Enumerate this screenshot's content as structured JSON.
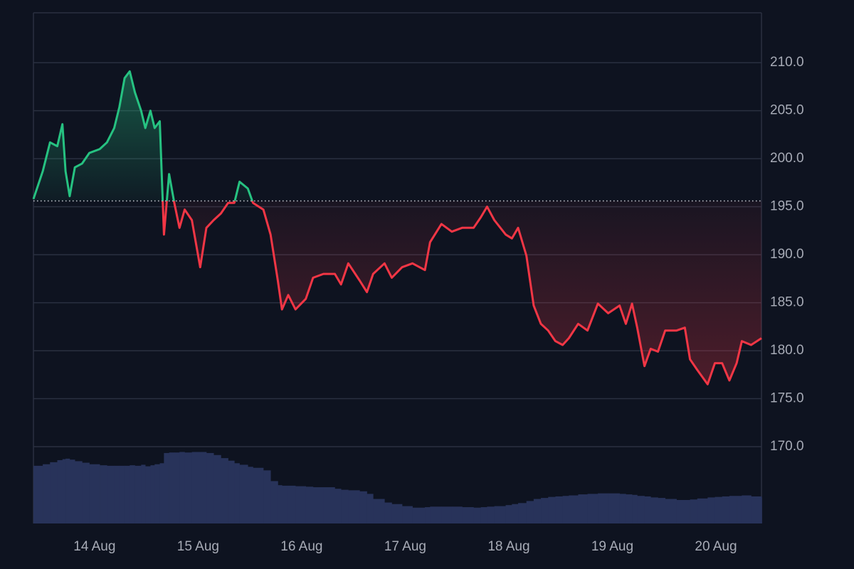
{
  "chart_data": {
    "type": "line",
    "x": [
      -0.59,
      -0.5,
      -0.43,
      -0.36,
      -0.31,
      -0.28,
      -0.24,
      -0.19,
      -0.12,
      -0.05,
      0.05,
      0.12,
      0.19,
      0.24,
      0.29,
      0.34,
      0.39,
      0.45,
      0.49,
      0.54,
      0.58,
      0.63,
      0.67,
      0.72,
      0.77,
      0.82,
      0.87,
      0.94,
      1.02,
      1.08,
      1.15,
      1.22,
      1.29,
      1.35,
      1.4,
      1.48,
      1.53,
      1.63,
      1.7,
      1.77,
      1.81,
      1.87,
      1.94,
      2.04,
      2.11,
      2.21,
      2.32,
      2.38,
      2.45,
      2.56,
      2.63,
      2.69,
      2.8,
      2.87,
      2.97,
      3.07,
      3.19,
      3.24,
      3.35,
      3.45,
      3.55,
      3.66,
      3.73,
      3.79,
      3.86,
      3.97,
      4.03,
      4.09,
      4.17,
      4.24,
      4.31,
      4.38,
      4.45,
      4.52,
      4.58,
      4.67,
      4.76,
      4.86,
      4.96,
      5.07,
      5.13,
      5.19,
      5.24,
      5.31,
      5.37,
      5.44,
      5.51,
      5.62,
      5.7,
      5.75,
      5.82,
      5.92,
      5.99,
      6.06,
      6.13,
      6.2,
      6.25,
      6.34,
      6.44
    ],
    "series": [
      {
        "color": "#26c281",
        "down_color": "#f23645",
        "values": [
          195.8,
          198.7,
          201.7,
          201.3,
          203.6,
          198.7,
          196.1,
          199.1,
          199.5,
          200.6,
          201.0,
          201.7,
          203.2,
          205.4,
          208.4,
          209.1,
          206.9,
          205.0,
          203.2,
          205.0,
          203.2,
          203.9,
          192.1,
          198.4,
          195.4,
          192.8,
          194.7,
          193.6,
          188.7,
          192.8,
          193.6,
          194.3,
          195.4,
          195.4,
          197.6,
          196.9,
          195.4,
          194.7,
          192.1,
          187.3,
          184.3,
          185.8,
          184.3,
          185.4,
          187.6,
          188.0,
          188.0,
          186.9,
          189.1,
          187.3,
          186.1,
          188.0,
          189.1,
          187.6,
          188.7,
          189.1,
          188.4,
          191.3,
          193.2,
          192.4,
          192.8,
          192.8,
          193.9,
          195.0,
          193.6,
          192.1,
          191.7,
          192.8,
          189.9,
          184.7,
          182.8,
          182.1,
          181.0,
          180.6,
          181.3,
          182.8,
          182.1,
          184.9,
          183.9,
          184.7,
          182.8,
          184.9,
          182.4,
          178.4,
          180.2,
          179.9,
          182.1,
          182.1,
          182.4,
          179.1,
          178.0,
          176.5,
          178.7,
          178.7,
          176.9,
          178.7,
          181.0,
          180.6,
          181.3
        ]
      },
      {
        "type": "bar",
        "axis": "y2",
        "color": "#28335a",
        "values": [
          11.3,
          11.6,
          12.0,
          12.4,
          12.6,
          12.7,
          12.5,
          12.2,
          11.9,
          11.6,
          11.4,
          11.3,
          11.3,
          11.3,
          11.3,
          11.4,
          11.3,
          11.5,
          11.2,
          11.4,
          11.6,
          11.8,
          13.8,
          13.9,
          13.9,
          14.0,
          13.9,
          14.0,
          14.0,
          13.8,
          13.4,
          12.8,
          12.3,
          11.8,
          11.5,
          11.1,
          10.9,
          10.4,
          8.3,
          7.5,
          7.4,
          7.4,
          7.3,
          7.2,
          7.1,
          7.1,
          6.8,
          6.6,
          6.5,
          6.3,
          5.8,
          4.8,
          4.1,
          3.8,
          3.4,
          3.1,
          3.2,
          3.3,
          3.3,
          3.3,
          3.2,
          3.1,
          3.2,
          3.3,
          3.4,
          3.6,
          3.8,
          4.0,
          4.4,
          4.8,
          5.0,
          5.2,
          5.3,
          5.4,
          5.5,
          5.7,
          5.8,
          5.9,
          5.9,
          5.8,
          5.7,
          5.6,
          5.4,
          5.3,
          5.1,
          5.0,
          4.8,
          4.6,
          4.6,
          4.7,
          4.9,
          5.1,
          5.2,
          5.3,
          5.4,
          5.4,
          5.5,
          5.3,
          5.1
        ]
      }
    ],
    "baseline": 195.6,
    "xlim": [
      -0.59,
      6.44
    ],
    "xticks": [
      {
        "value": 0,
        "label": "14 Aug"
      },
      {
        "value": 1,
        "label": "15 Aug"
      },
      {
        "value": 2,
        "label": "16 Aug"
      },
      {
        "value": 3,
        "label": "17 Aug"
      },
      {
        "value": 4,
        "label": "18 Aug"
      },
      {
        "value": 5,
        "label": "19 Aug"
      },
      {
        "value": 6,
        "label": "20 Aug"
      }
    ],
    "ylim": [
      162,
      215.2
    ],
    "yticks": [
      {
        "value": 170,
        "label": "170.0"
      },
      {
        "value": 175,
        "label": "175.0"
      },
      {
        "value": 180,
        "label": "180.0"
      },
      {
        "value": 185,
        "label": "185.0"
      },
      {
        "value": 190,
        "label": "190.0"
      },
      {
        "value": 195,
        "label": "195.0"
      },
      {
        "value": 200,
        "label": "200.0"
      },
      {
        "value": 205,
        "label": "205.0"
      },
      {
        "value": 210,
        "label": "210.0"
      }
    ],
    "y2lim": [
      0,
      100
    ],
    "grid": true
  }
}
